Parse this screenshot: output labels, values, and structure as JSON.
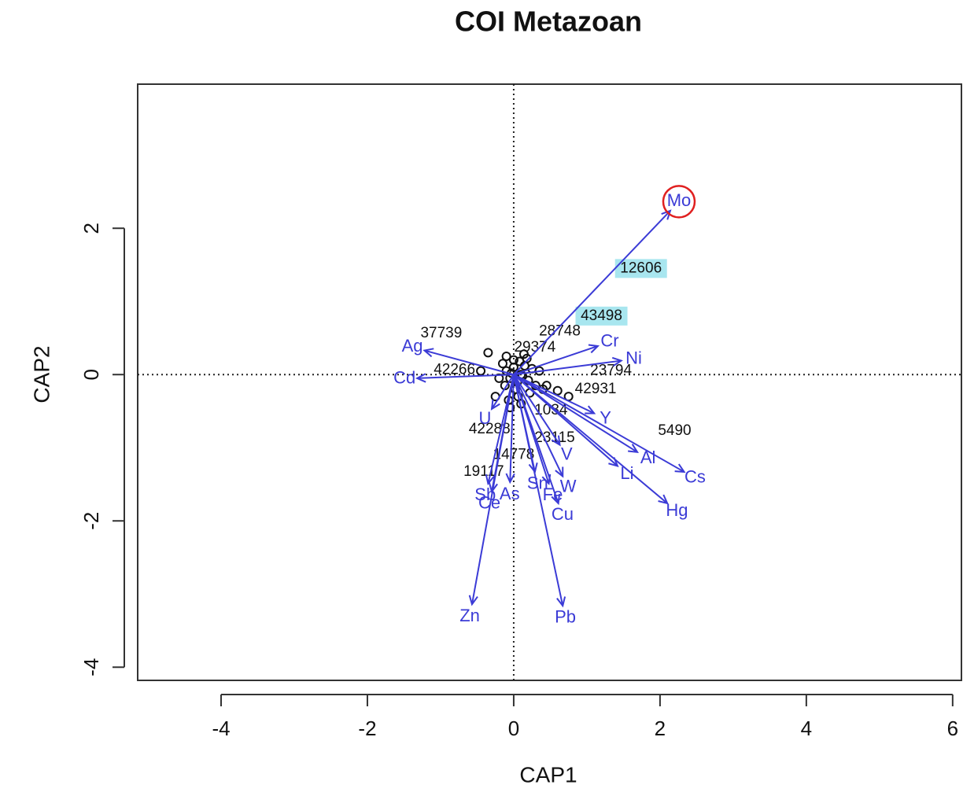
{
  "chart_data": {
    "type": "biplot",
    "title": "COI Metazoan",
    "xlabel": "CAP1",
    "ylabel": "CAP2",
    "xlim": [
      -5.14,
      6.12
    ],
    "ylim": [
      -4.18,
      3.97
    ],
    "xticks": [
      -4,
      -2,
      0,
      2,
      4,
      6
    ],
    "yticks": [
      -4,
      -2,
      0,
      2
    ],
    "points": {
      "x": [
        -0.15,
        -0.1,
        -0.05,
        0.0,
        0.05,
        0.1,
        0.15,
        0.2,
        -0.12,
        0.08,
        0.02,
        -0.03,
        0.12,
        0.25,
        0.3,
        -0.2,
        0.18,
        0.06,
        -0.07,
        0.35,
        0.4,
        0.22,
        -0.1,
        0.0,
        0.1,
        -0.25,
        -0.35,
        0.45,
        0.6,
        0.75,
        -0.05,
        0.14,
        -0.45
      ],
      "y": [
        0.15,
        0.05,
        -0.05,
        0.1,
        -0.1,
        0.0,
        0.12,
        -0.08,
        -0.15,
        0.18,
        -0.2,
        0.02,
        -0.02,
        0.08,
        -0.15,
        -0.05,
        0.22,
        -0.3,
        -0.35,
        0.05,
        -0.2,
        -0.25,
        0.25,
        0.2,
        -0.4,
        -0.3,
        0.3,
        -0.15,
        -0.22,
        -0.3,
        -0.45,
        0.28,
        0.05
      ]
    },
    "sites": {
      "labels": [
        "12606",
        "43498",
        "37739",
        "28748",
        "29374",
        "23794",
        "42931",
        "5490",
        "42266",
        "42288",
        "23115",
        "14778",
        "19117",
        "1034"
      ],
      "x": [
        1.74,
        1.2,
        -0.99,
        0.63,
        0.29,
        1.33,
        1.12,
        2.2,
        -0.81,
        -0.33,
        0.56,
        0.0,
        -0.41,
        0.51
      ],
      "y": [
        1.45,
        0.8,
        0.56,
        0.59,
        0.37,
        0.05,
        -0.2,
        -0.77,
        0.06,
        -0.75,
        -0.87,
        -1.1,
        -1.33,
        -0.49
      ],
      "highlighted": [
        "12606",
        "43498"
      ],
      "highlight_color": "#a8e6ef"
    },
    "arrows": {
      "color": "#3b3bd6",
      "labels": [
        "Mo",
        "Cr",
        "Ni",
        "Ag",
        "Cd",
        "Al",
        "Cs",
        "Li",
        "Hg",
        "V",
        "W",
        "Sn",
        "Fe",
        "Cu",
        "Pb",
        "Zn",
        "As",
        "Sb",
        "Ce",
        "U",
        "Y"
      ],
      "x": [
        2.14,
        1.15,
        1.47,
        -1.22,
        -1.32,
        1.69,
        2.33,
        1.42,
        2.1,
        0.63,
        0.67,
        0.29,
        0.48,
        0.61,
        0.67,
        -0.57,
        -0.05,
        -0.35,
        -0.3,
        -0.3,
        1.1
      ],
      "y": [
        2.24,
        0.39,
        0.19,
        0.33,
        -0.05,
        -1.06,
        -1.33,
        -1.25,
        -1.76,
        -0.96,
        -1.39,
        -1.33,
        -1.49,
        -1.76,
        -3.16,
        -3.14,
        -1.47,
        -1.49,
        -1.6,
        -0.47,
        -0.53
      ],
      "circled": "Mo",
      "circle_color": "#e02020"
    }
  }
}
